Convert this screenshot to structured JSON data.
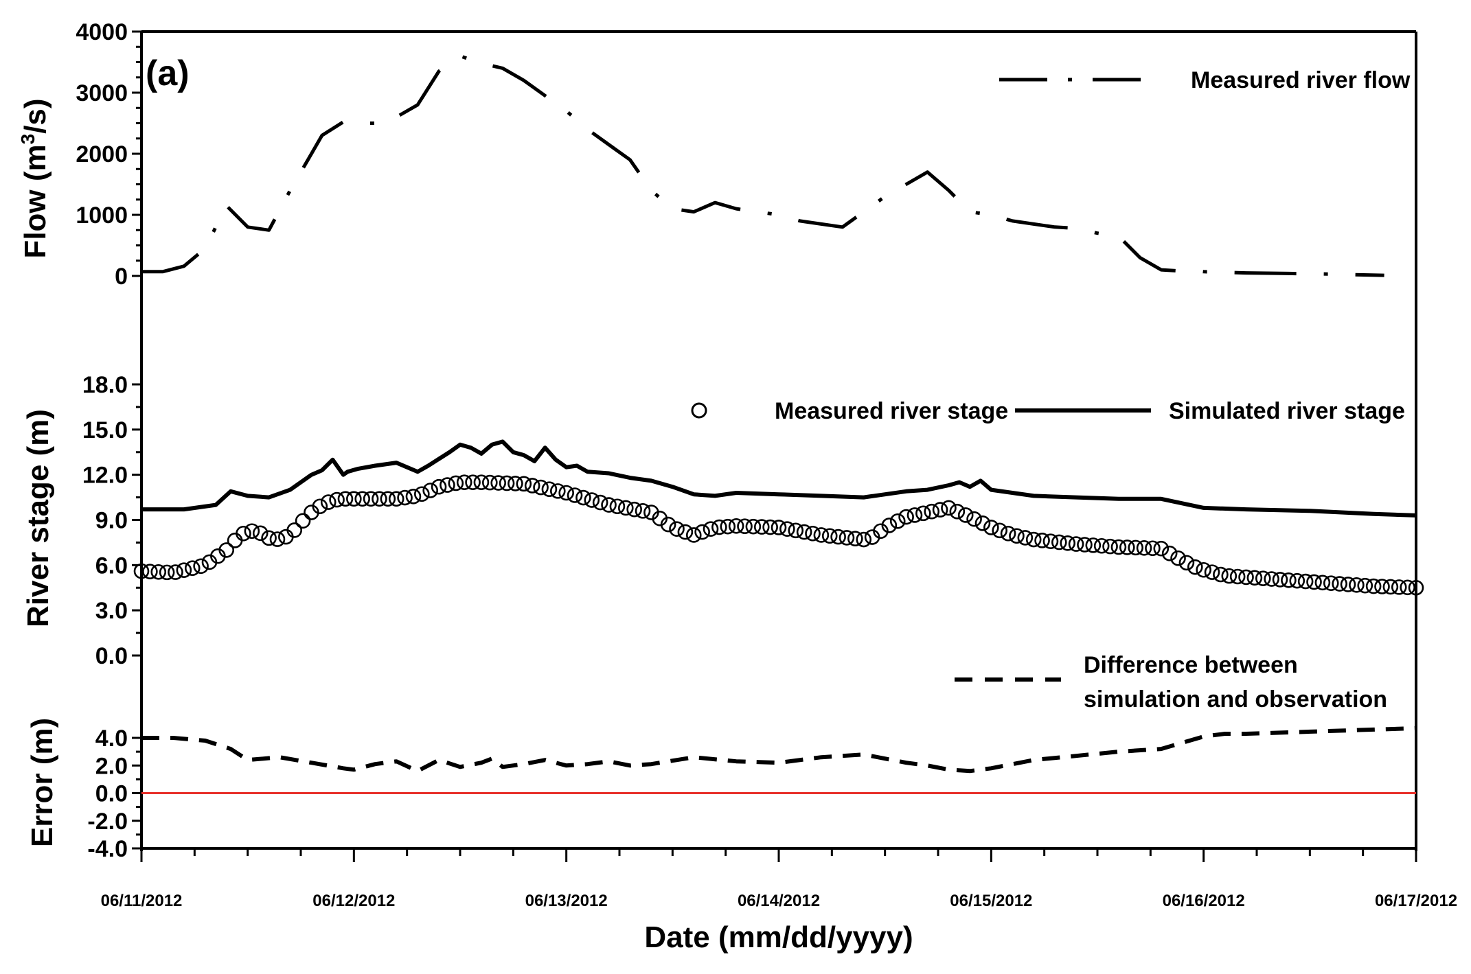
{
  "chart_data": {
    "type": "line",
    "panel_label": "(a)",
    "xlabel": "Date (mm/dd/yyyy)",
    "x_range_days": [
      0,
      6
    ],
    "x_ticks": [
      {
        "day": 0,
        "label": "06/11/2012"
      },
      {
        "day": 1,
        "label": "06/12/2012"
      },
      {
        "day": 2,
        "label": "06/13/2012"
      },
      {
        "day": 3,
        "label": "06/14/2012"
      },
      {
        "day": 4,
        "label": "06/15/2012"
      },
      {
        "day": 5,
        "label": "06/16/2012"
      },
      {
        "day": 6,
        "label": "06/17/2012"
      }
    ],
    "panels": [
      {
        "id": "flow",
        "ylabel": "Flow (m",
        "ylabel_sup": "3",
        "ylabel_end": "/s)",
        "ylim": [
          0,
          4000
        ],
        "y_ticks": [
          "0",
          "1000",
          "2000",
          "3000",
          "4000"
        ],
        "y_tick_values": [
          0,
          1000,
          2000,
          3000,
          4000
        ],
        "series": [
          {
            "name": "Measured river flow",
            "style": "dash-dot",
            "x": [
              0,
              0.1,
              0.2,
              0.3,
              0.4,
              0.5,
              0.6,
              0.7,
              0.8,
              0.85,
              0.95,
              1.05,
              1.15,
              1.3,
              1.4,
              1.5,
              1.6,
              1.7,
              1.8,
              1.9,
              2.0,
              2.1,
              2.2,
              2.3,
              2.4,
              2.5,
              2.6,
              2.7,
              2.8,
              2.9,
              3.0,
              3.1,
              3.2,
              3.3,
              3.4,
              3.5,
              3.6,
              3.7,
              3.8,
              3.9,
              4.0,
              4.1,
              4.2,
              4.3,
              4.4,
              4.5,
              4.6,
              4.7,
              4.8,
              4.9,
              4.97,
              5.0,
              5.1,
              5.2,
              5.4,
              5.6,
              5.7,
              5.85
            ],
            "values": [
              70,
              70,
              160,
              450,
              1150,
              800,
              750,
              1400,
              2000,
              2300,
              2520,
              2500,
              2500,
              2800,
              3350,
              3600,
              3480,
              3400,
              3200,
              2950,
              2700,
              2400,
              2150,
              1900,
              1400,
              1100,
              1050,
              1200,
              1100,
              1050,
              1000,
              900,
              850,
              800,
              1050,
              1300,
              1500,
              1700,
              1400,
              1050,
              1000,
              900,
              850,
              800,
              780,
              700,
              650,
              300,
              100,
              80,
              80,
              70,
              60,
              50,
              40,
              30,
              20,
              10
            ]
          }
        ]
      },
      {
        "id": "stage",
        "ylabel": "River stage (m)",
        "ylim": [
          0,
          18
        ],
        "y_ticks": [
          "0.0",
          "3.0",
          "6.0",
          "9.0",
          "12.0",
          "15.0",
          "18.0"
        ],
        "y_tick_values": [
          0,
          3,
          6,
          9,
          12,
          15,
          18
        ],
        "series": [
          {
            "name": "Simulated river stage",
            "style": "solid",
            "x": [
              0,
              0.2,
              0.35,
              0.42,
              0.5,
              0.6,
              0.7,
              0.8,
              0.85,
              0.9,
              0.95,
              0.97,
              1.02,
              1.1,
              1.2,
              1.3,
              1.35,
              1.45,
              1.5,
              1.55,
              1.6,
              1.65,
              1.7,
              1.75,
              1.8,
              1.85,
              1.9,
              1.95,
              2.0,
              2.05,
              2.1,
              2.2,
              2.3,
              2.4,
              2.5,
              2.6,
              2.7,
              2.8,
              3.0,
              3.2,
              3.4,
              3.6,
              3.7,
              3.8,
              3.85,
              3.9,
              3.95,
              4.0,
              4.2,
              4.4,
              4.6,
              4.8,
              5.0,
              5.2,
              5.5,
              5.8,
              6.0
            ],
            "values": [
              9.7,
              9.7,
              10.0,
              10.9,
              10.6,
              10.5,
              11.0,
              12.0,
              12.3,
              13.0,
              12.0,
              12.2,
              12.4,
              12.6,
              12.8,
              12.2,
              12.6,
              13.5,
              14.0,
              13.8,
              13.4,
              14.0,
              14.2,
              13.5,
              13.3,
              12.9,
              13.8,
              13.0,
              12.5,
              12.6,
              12.2,
              12.1,
              11.8,
              11.6,
              11.2,
              10.7,
              10.6,
              10.8,
              10.7,
              10.6,
              10.5,
              10.9,
              11.0,
              11.3,
              11.5,
              11.2,
              11.6,
              11.0,
              10.6,
              10.5,
              10.4,
              10.4,
              9.8,
              9.7,
              9.6,
              9.4,
              9.3
            ]
          },
          {
            "name": "Measured river stage",
            "style": "circle-markers",
            "x": [
              0,
              0.15,
              0.3,
              0.4,
              0.45,
              0.5,
              0.55,
              0.6,
              0.65,
              0.7,
              0.75,
              0.8,
              0.85,
              0.9,
              0.95,
              1.0,
              1.2,
              1.3,
              1.4,
              1.5,
              1.6,
              1.8,
              1.9,
              2.0,
              2.2,
              2.4,
              2.5,
              2.6,
              2.7,
              2.8,
              3.0,
              3.2,
              3.4,
              3.45,
              3.5,
              3.6,
              3.7,
              3.8,
              3.9,
              4.0,
              4.1,
              4.2,
              4.4,
              4.6,
              4.8,
              4.9,
              4.97,
              5.1,
              5.2,
              5.4,
              5.6,
              5.8,
              6.0
            ],
            "values": [
              5.6,
              5.5,
              6.0,
              7.0,
              7.8,
              8.3,
              8.2,
              7.8,
              7.7,
              8.0,
              8.8,
              9.5,
              10.0,
              10.3,
              10.4,
              10.4,
              10.4,
              10.6,
              11.2,
              11.5,
              11.5,
              11.4,
              11.1,
              10.8,
              10.0,
              9.5,
              8.5,
              8.0,
              8.5,
              8.6,
              8.5,
              8.0,
              7.7,
              7.9,
              8.5,
              9.2,
              9.5,
              9.8,
              9.2,
              8.5,
              8.0,
              7.7,
              7.4,
              7.2,
              7.1,
              6.3,
              5.8,
              5.3,
              5.2,
              5.0,
              4.8,
              4.6,
              4.5
            ]
          }
        ]
      },
      {
        "id": "error",
        "ylabel": "Error (m)",
        "ylim": [
          -4,
          4
        ],
        "y_ticks": [
          "4.0",
          "2.0",
          "0.0",
          "-2.0",
          "-4.0"
        ],
        "y_tick_values": [
          4,
          2,
          0,
          -2,
          -4
        ],
        "series": [
          {
            "name": "Difference between simulation and observation",
            "name_line1": "Difference between",
            "name_line2": "simulation and observation",
            "style": "dashed",
            "x": [
              0,
              0.15,
              0.3,
              0.42,
              0.5,
              0.65,
              0.8,
              0.95,
              1.0,
              1.1,
              1.2,
              1.3,
              1.4,
              1.5,
              1.6,
              1.65,
              1.7,
              1.8,
              1.9,
              2.0,
              2.1,
              2.2,
              2.3,
              2.4,
              2.6,
              2.8,
              3.0,
              3.2,
              3.4,
              3.6,
              3.7,
              3.8,
              3.9,
              4.0,
              4.2,
              4.4,
              4.6,
              4.8,
              5.0,
              5.1,
              5.2,
              5.4,
              5.6,
              5.8,
              6.0
            ],
            "values": [
              4.0,
              4.0,
              3.8,
              3.2,
              2.4,
              2.6,
              2.2,
              1.8,
              1.7,
              2.1,
              2.3,
              1.6,
              2.4,
              1.9,
              2.2,
              2.5,
              1.9,
              2.1,
              2.4,
              2.0,
              2.1,
              2.3,
              2.0,
              2.1,
              2.6,
              2.3,
              2.2,
              2.6,
              2.8,
              2.2,
              2.0,
              1.7,
              1.6,
              1.8,
              2.4,
              2.7,
              3.0,
              3.2,
              4.1,
              4.3,
              4.3,
              4.4,
              4.5,
              4.6,
              4.7
            ]
          },
          {
            "name": "zero line",
            "style": "solid-red",
            "x": [
              0,
              6
            ],
            "values": [
              0,
              0
            ]
          }
        ]
      }
    ],
    "legend_markers": {
      "measured_flow": "Measured river flow",
      "measured_stage": "Measured river stage",
      "simulated_stage": "Simulated river stage"
    },
    "colors": {
      "axis": "#000000",
      "series": "#000000",
      "zero_line": "#e8302a"
    }
  }
}
